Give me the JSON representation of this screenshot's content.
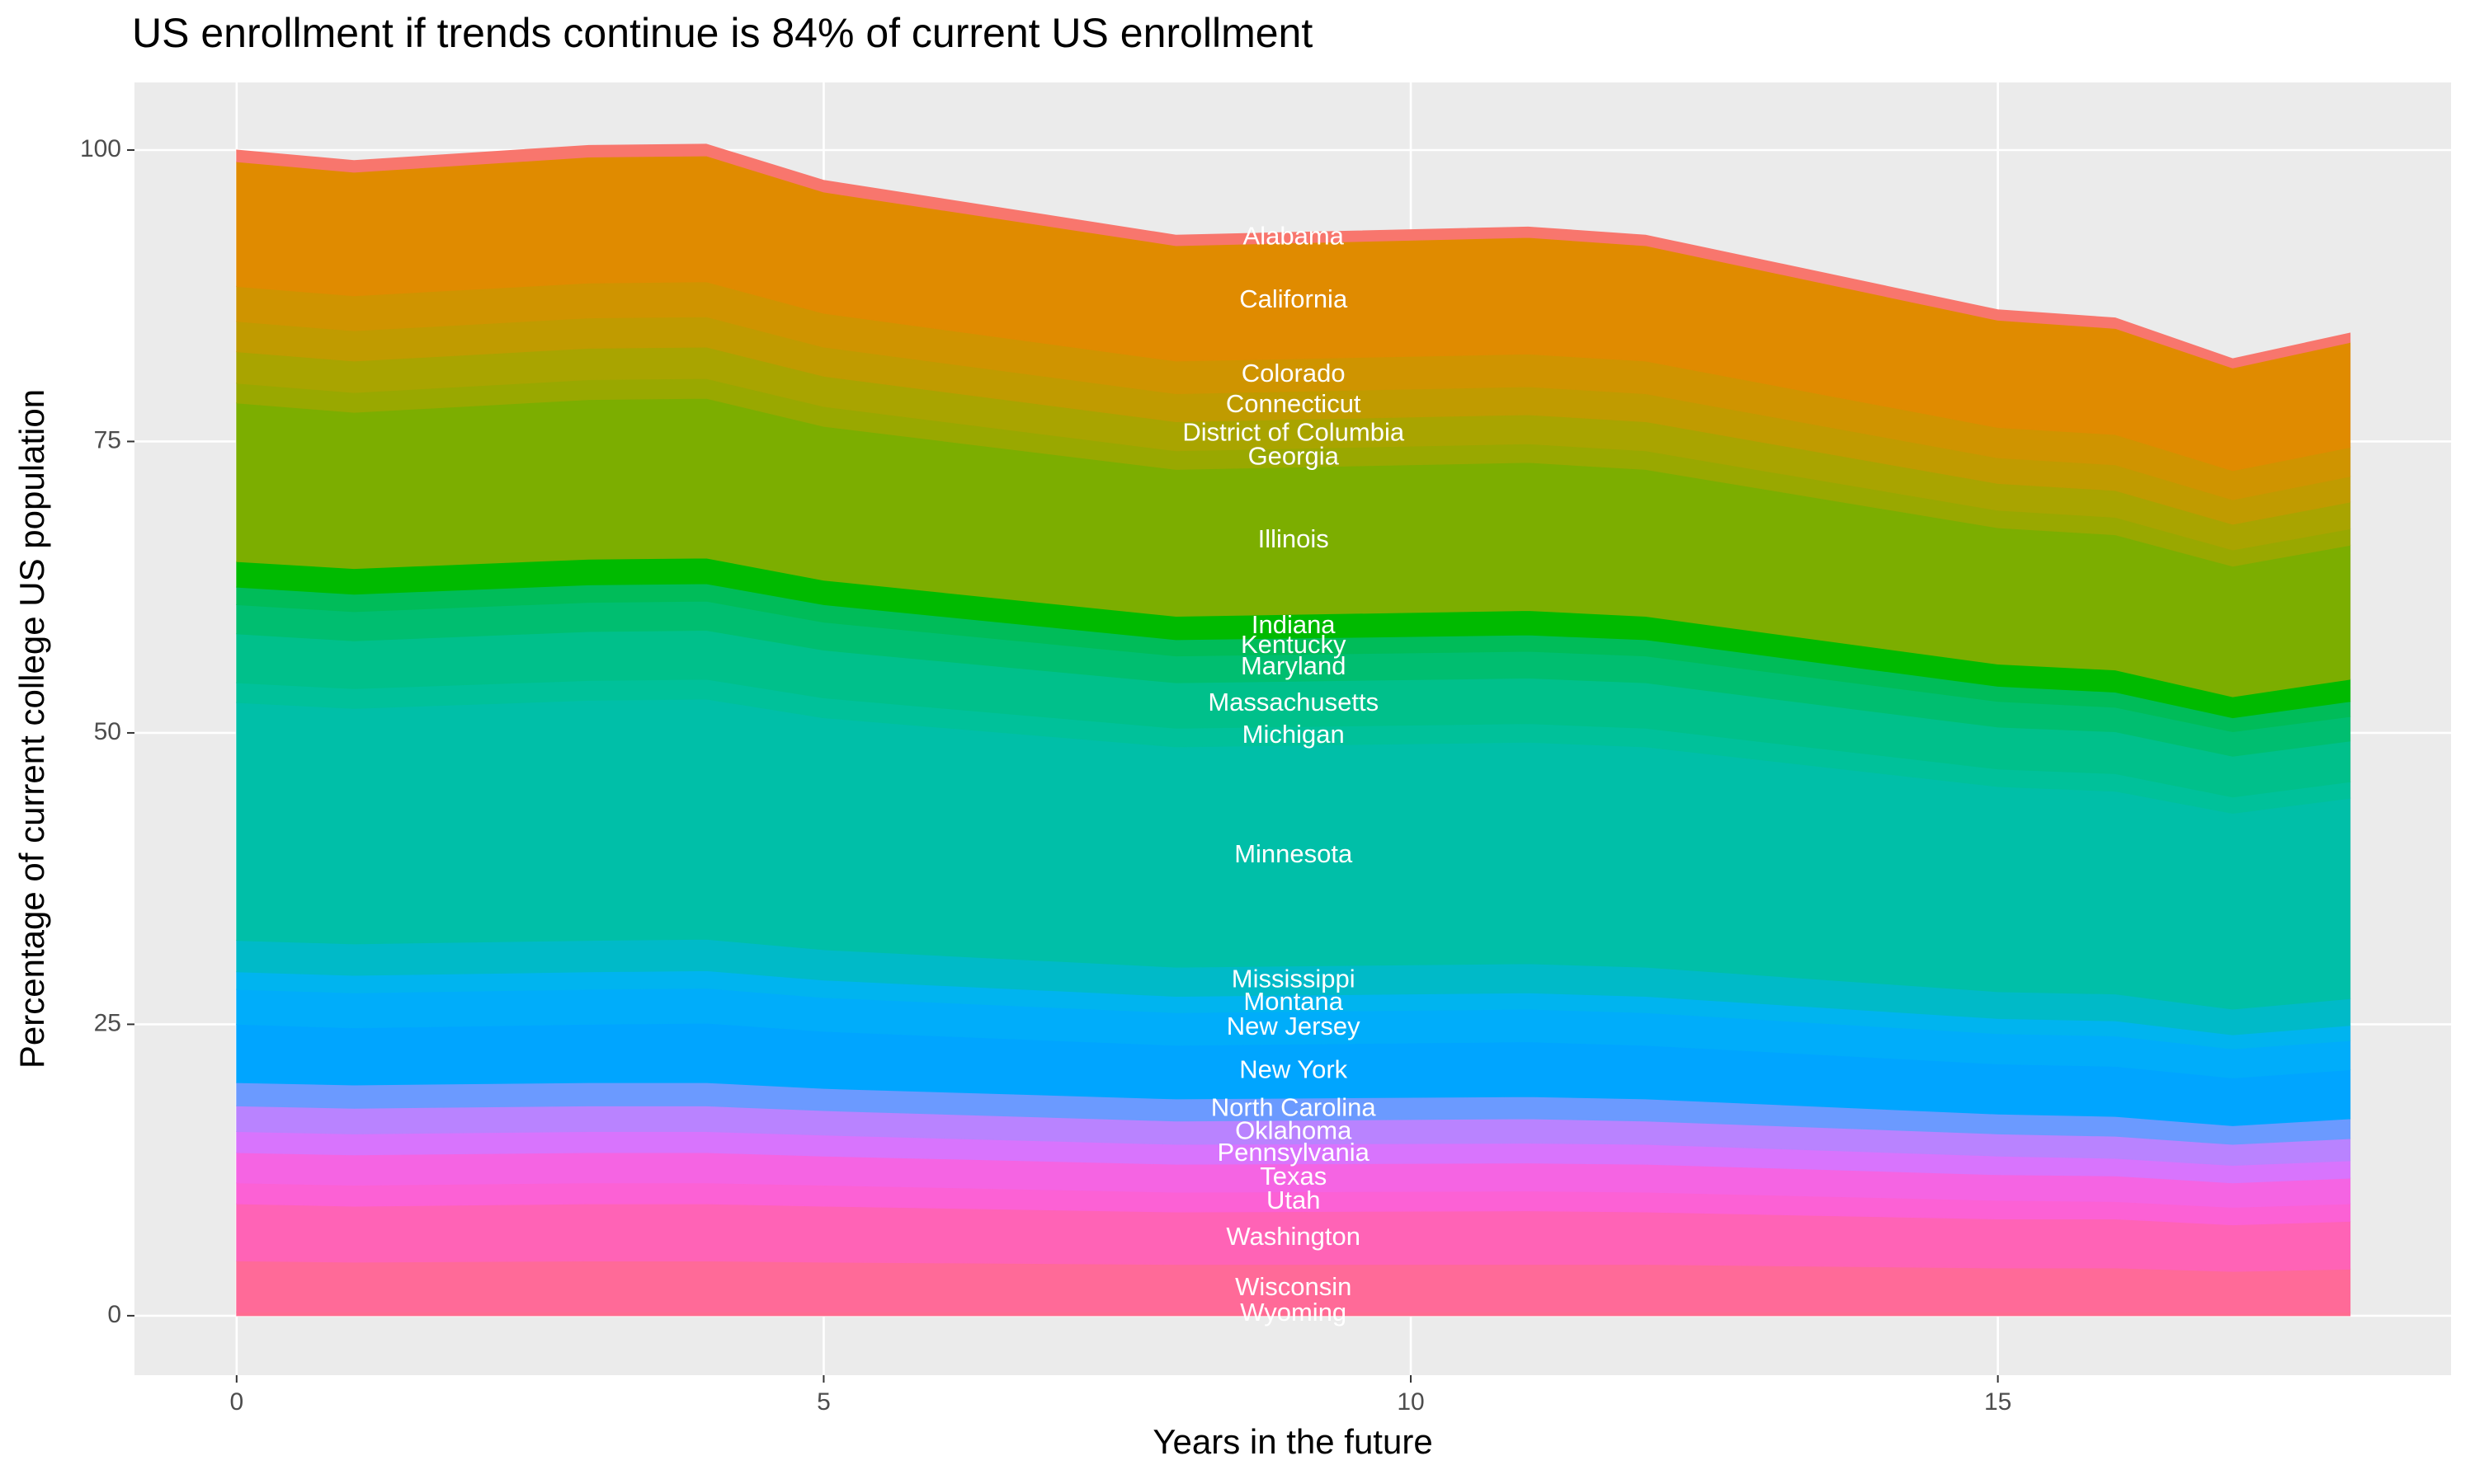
{
  "chart_data": {
    "type": "stacked_area",
    "title": "US enrollment if trends continue is 84% of current US enrollment",
    "x_label": "Years in the future",
    "y_label": "Percentage of current college US population",
    "x": [
      0,
      1,
      3,
      4,
      5,
      8,
      11,
      12,
      15,
      16,
      17,
      18
    ],
    "xlim": [
      -0.87,
      18.86
    ],
    "ylim": [
      -5.1,
      105.8
    ],
    "xticks": [
      0,
      5,
      10,
      15
    ],
    "yticks": [
      0,
      25,
      50,
      75,
      100
    ],
    "grid": true,
    "label_x": 9,
    "series": [
      {
        "name": "Alabama",
        "color": "#F8766D",
        "values": [
          1.0,
          1.0,
          1.0,
          1.0,
          1.0,
          0.9,
          0.9,
          0.9,
          0.9,
          0.9,
          0.8,
          0.8
        ]
      },
      {
        "name": "California",
        "color": "#E08B00",
        "values": [
          10.7,
          10.6,
          10.8,
          10.8,
          10.4,
          9.9,
          10.0,
          9.9,
          9.2,
          9.1,
          8.8,
          9.0
        ]
      },
      {
        "name": "Colorado",
        "color": "#CF9400",
        "values": [
          3.0,
          3.0,
          3.0,
          3.0,
          2.9,
          2.8,
          2.8,
          2.8,
          2.6,
          2.6,
          2.5,
          2.5
        ]
      },
      {
        "name": "Connecticut",
        "color": "#C09B00",
        "values": [
          2.6,
          2.6,
          2.6,
          2.6,
          2.5,
          2.4,
          2.4,
          2.4,
          2.2,
          2.2,
          2.1,
          2.2
        ]
      },
      {
        "name": "District of Columbia",
        "color": "#A9A400",
        "values": [
          2.7,
          2.7,
          2.7,
          2.7,
          2.6,
          2.5,
          2.5,
          2.5,
          2.3,
          2.3,
          2.2,
          2.3
        ]
      },
      {
        "name": "Georgia",
        "color": "#99A800",
        "values": [
          1.7,
          1.7,
          1.7,
          1.7,
          1.7,
          1.6,
          1.6,
          1.6,
          1.5,
          1.5,
          1.4,
          1.4
        ]
      },
      {
        "name": "Illinois",
        "color": "#7CAE00",
        "values": [
          13.6,
          13.4,
          13.7,
          13.7,
          13.2,
          12.6,
          12.7,
          12.6,
          11.7,
          11.6,
          11.2,
          11.5
        ]
      },
      {
        "name": "Indiana",
        "color": "#00BA00",
        "values": [
          2.2,
          2.2,
          2.2,
          2.2,
          2.1,
          2.0,
          2.1,
          2.0,
          1.9,
          1.9,
          1.8,
          1.9
        ]
      },
      {
        "name": "Kentucky",
        "color": "#00BC59",
        "values": [
          1.5,
          1.5,
          1.5,
          1.5,
          1.5,
          1.4,
          1.4,
          1.4,
          1.3,
          1.3,
          1.2,
          1.3
        ]
      },
      {
        "name": "Maryland",
        "color": "#00BE70",
        "values": [
          2.5,
          2.5,
          2.5,
          2.5,
          2.4,
          2.3,
          2.3,
          2.3,
          2.2,
          2.1,
          2.1,
          2.1
        ]
      },
      {
        "name": "Massachusetts",
        "color": "#00C08B",
        "values": [
          4.2,
          4.1,
          4.2,
          4.2,
          4.1,
          3.9,
          3.9,
          3.9,
          3.6,
          3.6,
          3.5,
          3.5
        ]
      },
      {
        "name": "Michigan",
        "color": "#00C19A",
        "values": [
          1.7,
          1.7,
          1.7,
          1.7,
          1.7,
          1.6,
          1.6,
          1.6,
          1.5,
          1.5,
          1.4,
          1.4
        ]
      },
      {
        "name": "Minnesota",
        "color": "#00BFA8",
        "values": [
          20.4,
          20.2,
          20.6,
          20.6,
          19.9,
          18.9,
          19.0,
          18.9,
          17.6,
          17.4,
          16.8,
          17.2
        ]
      },
      {
        "name": "Mississippi",
        "color": "#00BAC8",
        "values": [
          2.7,
          2.7,
          2.7,
          2.7,
          2.6,
          2.5,
          2.5,
          2.5,
          2.3,
          2.3,
          2.2,
          2.3
        ]
      },
      {
        "name": "Montana",
        "color": "#00B4EF",
        "values": [
          1.5,
          1.5,
          1.5,
          1.5,
          1.5,
          1.4,
          1.4,
          1.4,
          1.3,
          1.3,
          1.2,
          1.3
        ]
      },
      {
        "name": "New Jersey",
        "color": "#00ADFA",
        "values": [
          3.0,
          3.0,
          3.0,
          3.0,
          2.9,
          2.8,
          2.8,
          2.8,
          2.6,
          2.6,
          2.5,
          2.5
        ]
      },
      {
        "name": "New York",
        "color": "#00A5FF",
        "values": [
          5.0,
          4.9,
          5.0,
          5.1,
          4.9,
          4.6,
          4.7,
          4.6,
          4.3,
          4.3,
          4.1,
          4.2
        ]
      },
      {
        "name": "North Carolina",
        "color": "#6B9AFF",
        "values": [
          2.0,
          2.0,
          2.0,
          2.0,
          1.9,
          1.9,
          1.9,
          1.9,
          1.7,
          1.7,
          1.6,
          1.7
        ]
      },
      {
        "name": "Oklahoma",
        "color": "#B983FF",
        "values": [
          2.2,
          2.2,
          2.2,
          2.2,
          2.1,
          2.0,
          2.1,
          2.0,
          1.9,
          1.9,
          1.8,
          1.9
        ]
      },
      {
        "name": "Pennsylvania",
        "color": "#D874FD",
        "values": [
          1.8,
          1.8,
          1.8,
          1.8,
          1.8,
          1.7,
          1.7,
          1.7,
          1.6,
          1.5,
          1.5,
          1.5
        ]
      },
      {
        "name": "Texas",
        "color": "#F564E3",
        "values": [
          2.6,
          2.6,
          2.6,
          2.6,
          2.5,
          2.4,
          2.4,
          2.4,
          2.2,
          2.2,
          2.1,
          2.2
        ]
      },
      {
        "name": "Utah",
        "color": "#FC61D5",
        "values": [
          1.8,
          1.8,
          1.8,
          1.8,
          1.8,
          1.7,
          1.7,
          1.7,
          1.6,
          1.5,
          1.5,
          1.5
        ]
      },
      {
        "name": "Washington",
        "color": "#FF63B6",
        "values": [
          4.9,
          4.8,
          4.9,
          4.9,
          4.8,
          4.5,
          4.6,
          4.5,
          4.2,
          4.2,
          4.0,
          4.1
        ]
      },
      {
        "name": "Wisconsin",
        "color": "#FF6A98",
        "values": [
          4.4,
          4.3,
          4.4,
          4.4,
          4.3,
          4.1,
          4.1,
          4.1,
          3.8,
          3.8,
          3.6,
          3.7
        ]
      },
      {
        "name": "Wyoming",
        "color": "#FF6C91",
        "values": [
          0.3,
          0.3,
          0.3,
          0.3,
          0.3,
          0.3,
          0.3,
          0.3,
          0.3,
          0.3,
          0.2,
          0.3
        ]
      }
    ]
  }
}
